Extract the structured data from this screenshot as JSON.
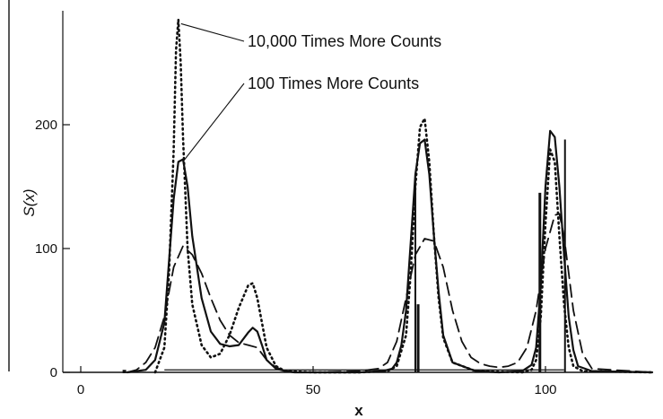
{
  "chart_data": {
    "type": "line",
    "xlabel": "x",
    "ylabel": "S(x)",
    "xlim": [
      0,
      125
    ],
    "ylim": [
      0,
      295
    ],
    "x_ticks": [
      {
        "value": 0,
        "label": "0"
      },
      {
        "value": 50,
        "label": "50"
      },
      {
        "value": 100,
        "label": "100"
      }
    ],
    "y_ticks": [
      {
        "value": 0,
        "label": "0"
      },
      {
        "value": 100,
        "label": "100"
      },
      {
        "value": 200,
        "label": "200"
      }
    ],
    "grid": false,
    "legend": "none",
    "colors": {
      "line": "#111111",
      "axis": "#111111",
      "background": "#ffffff"
    },
    "series": [
      {
        "style": "solid",
        "x": [
          10,
          14,
          16,
          18,
          19,
          20,
          21,
          22,
          23,
          24,
          26,
          28,
          30,
          32,
          34,
          36,
          37,
          38,
          39,
          40,
          42,
          44,
          46,
          50,
          55,
          60,
          65,
          67,
          68,
          69,
          70,
          71,
          72,
          73,
          74,
          75,
          76,
          77,
          78,
          80,
          85,
          90,
          95,
          97,
          98,
          99,
          100,
          101,
          102,
          103,
          104,
          105,
          106,
          107,
          110,
          125
        ],
        "y": [
          0,
          2,
          10,
          40,
          90,
          140,
          170,
          172,
          150,
          110,
          60,
          33,
          23,
          21,
          22,
          32,
          36,
          33,
          22,
          10,
          3,
          1,
          0,
          0,
          0,
          0,
          1,
          3,
          8,
          22,
          50,
          105,
          160,
          185,
          188,
          160,
          110,
          65,
          30,
          8,
          1,
          0,
          1,
          6,
          20,
          70,
          150,
          195,
          190,
          150,
          95,
          45,
          18,
          5,
          1,
          0
        ]
      },
      {
        "style": "dashed",
        "x": [
          10,
          12,
          14,
          16,
          18,
          20,
          22,
          24,
          26,
          28,
          30,
          32,
          34,
          36,
          38,
          40,
          42,
          44,
          46,
          50,
          60,
          64,
          66,
          68,
          70,
          72,
          74,
          76,
          78,
          80,
          82,
          84,
          86,
          88,
          90,
          92,
          94,
          96,
          98,
          100,
          102,
          103,
          104,
          106,
          108,
          110,
          125
        ],
        "y": [
          0,
          2,
          8,
          20,
          45,
          85,
          102,
          95,
          80,
          60,
          42,
          30,
          24,
          22,
          20,
          10,
          4,
          1,
          0,
          0,
          1,
          3,
          8,
          25,
          60,
          95,
          108,
          106,
          85,
          50,
          25,
          12,
          7,
          5,
          4,
          5,
          8,
          20,
          50,
          100,
          127,
          128,
          110,
          50,
          15,
          3,
          0
        ]
      },
      {
        "style": "dotted",
        "x": [
          16,
          18,
          19,
          20,
          20.5,
          21,
          21.5,
          22,
          23,
          24,
          26,
          28,
          30,
          32,
          34,
          36,
          37,
          38,
          39,
          40,
          42,
          44,
          50,
          60,
          66,
          68,
          70,
          71,
          72,
          73,
          74,
          75,
          76,
          77,
          78,
          80,
          85,
          95,
          97,
          98,
          99,
          100,
          101,
          102,
          103,
          104,
          105,
          106,
          108,
          125
        ],
        "y": [
          0,
          20,
          80,
          180,
          260,
          285,
          250,
          190,
          100,
          55,
          22,
          12,
          15,
          30,
          52,
          70,
          72,
          60,
          40,
          20,
          5,
          1,
          0,
          0,
          1,
          5,
          30,
          80,
          150,
          198,
          205,
          170,
          110,
          60,
          28,
          8,
          1,
          0,
          2,
          10,
          45,
          120,
          180,
          170,
          110,
          55,
          20,
          5,
          1,
          0
        ]
      }
    ],
    "vertical_bars": [
      {
        "x": 72,
        "height": 155
      },
      {
        "x": 72.6,
        "height": 55
      },
      {
        "x": 98.8,
        "height": 145
      },
      {
        "x": 104.2,
        "height": 188
      }
    ],
    "annotations": [
      {
        "text": "10,000 Times More Counts",
        "target": [
          21,
          283
        ]
      },
      {
        "text": "100 Times More Counts",
        "target": [
          21.5,
          172
        ]
      }
    ]
  }
}
